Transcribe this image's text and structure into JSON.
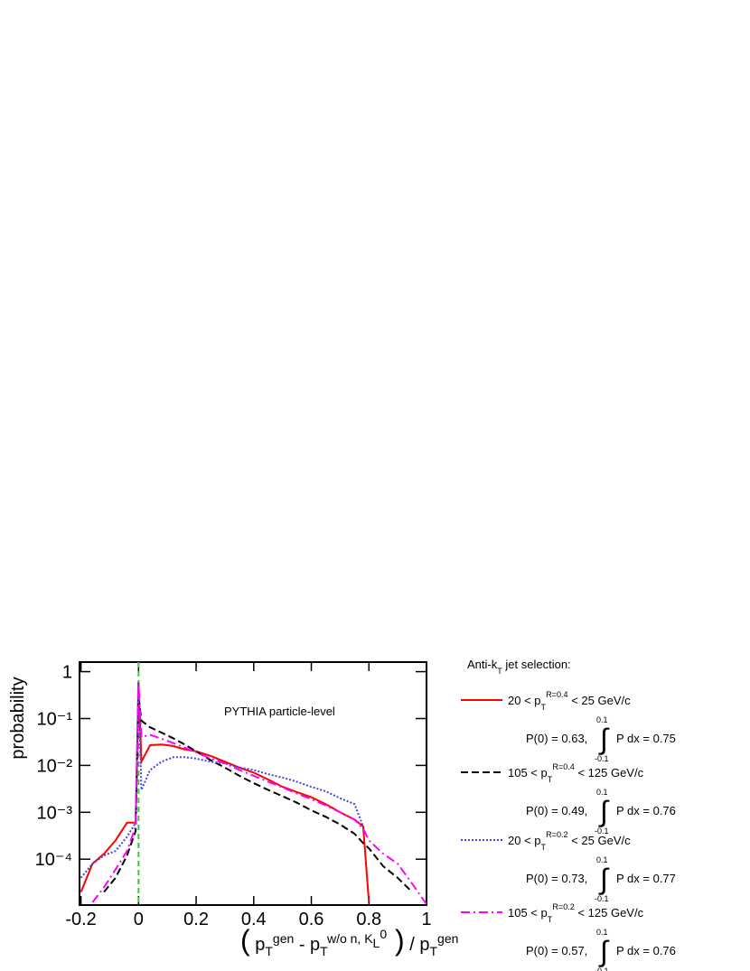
{
  "chart_data": {
    "type": "line",
    "y_label": "probability",
    "x_label": [
      {
        "text": "(",
        "role": "paren"
      },
      {
        "text": " p",
        "role": "base"
      },
      {
        "text": "T",
        "role": "sub"
      },
      {
        "text": "gen",
        "role": "sup"
      },
      {
        "text": " - p",
        "role": "base"
      },
      {
        "text": "T",
        "role": "sub"
      },
      {
        "text": "w/o n, K",
        "role": "sup"
      },
      {
        "text": "L",
        "role": "supsub"
      },
      {
        "text": "0",
        "role": "supsup"
      },
      {
        "text": " )",
        "role": "paren"
      },
      {
        "text": " / p",
        "role": "base"
      },
      {
        "text": "T",
        "role": "sub"
      },
      {
        "text": "gen",
        "role": "sup"
      }
    ],
    "annotation": "PYTHIA particle-level",
    "xlim": [
      -0.205,
      1.0
    ],
    "xticks": [
      -0.2,
      0,
      0.2,
      0.4,
      0.6,
      0.8,
      1
    ],
    "ylim": [
      1.05e-05,
      1.6
    ],
    "log_y": true,
    "yticks": [
      {
        "value": 1,
        "label": "1"
      },
      {
        "value": 0.1,
        "label": "10⁻¹"
      },
      {
        "value": 0.01,
        "label": "10⁻²"
      },
      {
        "value": 0.001,
        "label": "10⁻³"
      },
      {
        "value": 0.0001,
        "label": "10⁻⁴"
      }
    ],
    "vline": {
      "x": 0,
      "color": "#33cc33"
    },
    "legend": {
      "title": [
        {
          "text": "Anti-k",
          "role": "base"
        },
        {
          "text": "T",
          "role": "sub"
        },
        {
          "text": " jet selection:",
          "role": "base"
        }
      ],
      "integral_sign": "∫",
      "integral_limits": [
        "-0.1",
        "0.1"
      ]
    },
    "x": [
      -0.2,
      -0.16,
      -0.12,
      -0.08,
      -0.04,
      -0.01,
      0,
      0.01,
      0.04,
      0.08,
      0.12,
      0.16,
      0.2,
      0.25,
      0.3,
      0.35,
      0.4,
      0.45,
      0.5,
      0.55,
      0.6,
      0.65,
      0.7,
      0.75,
      0.78,
      0.8,
      0.85,
      0.9,
      0.95,
      1.0
    ],
    "series": [
      {
        "name": [
          {
            "text": "20 < p",
            "role": "base"
          },
          {
            "text": "T",
            "role": "sub"
          },
          {
            "text": "R=0.4",
            "role": "sup"
          },
          {
            "text": " <  25 GeV/c",
            "role": "base"
          }
        ],
        "color": "#ff0000",
        "dash": "solid",
        "p0_label": "P(0) = 0.63,",
        "integral_label": "P dx = 0.75",
        "values": [
          2e-05,
          8e-05,
          0.00013,
          0.00025,
          0.0006,
          0.0006,
          0.6,
          0.012,
          0.027,
          0.028,
          0.026,
          0.022,
          0.02,
          0.016,
          0.012,
          0.009,
          0.007,
          0.005,
          0.0035,
          0.0027,
          0.0021,
          0.0015,
          0.001,
          0.0007,
          0.0005,
          1.2e-05,
          null,
          null,
          null,
          null
        ]
      },
      {
        "name": [
          {
            "text": "105 < p",
            "role": "base"
          },
          {
            "text": "T",
            "role": "sub"
          },
          {
            "text": "R=0.4",
            "role": "sup"
          },
          {
            "text": " < 125 GeV/c",
            "role": "base"
          }
        ],
        "color": "#000000",
        "dash": "dashed",
        "p0_label": "P(0) = 0.49,",
        "integral_label": "P dx = 0.76",
        "values": [
          null,
          null,
          2e-05,
          4e-05,
          0.00012,
          0.0004,
          0.3,
          0.09,
          0.065,
          0.05,
          0.038,
          0.028,
          0.02,
          0.013,
          0.009,
          0.006,
          0.0042,
          0.003,
          0.0022,
          0.0016,
          0.0011,
          0.0008,
          0.00055,
          0.00035,
          0.00022,
          0.00017,
          7e-05,
          4e-05,
          2e-05,
          null
        ]
      },
      {
        "name": [
          {
            "text": "20 < p",
            "role": "base"
          },
          {
            "text": "T",
            "role": "sub"
          },
          {
            "text": "R=0.2",
            "role": "sup"
          },
          {
            "text": " <  25 GeV/c",
            "role": "base"
          }
        ],
        "color": "#4444dd",
        "dash": "dotted",
        "p0_label": "P(0) = 0.73,",
        "integral_label": "P dx = 0.77",
        "values": [
          4e-05,
          8e-05,
          0.00012,
          0.00015,
          0.0003,
          0.0006,
          0.6,
          0.003,
          0.008,
          0.012,
          0.015,
          0.015,
          0.014,
          0.012,
          0.011,
          0.009,
          0.008,
          0.0065,
          0.0055,
          0.0045,
          0.0035,
          0.0028,
          0.002,
          0.0015,
          0.0005,
          null,
          null,
          null,
          null,
          null
        ]
      },
      {
        "name": [
          {
            "text": "105 < p",
            "role": "base"
          },
          {
            "text": "T",
            "role": "sub"
          },
          {
            "text": "R=0.2",
            "role": "sup"
          },
          {
            "text": " < 125 GeV/c",
            "role": "base"
          }
        ],
        "color": "#ff00ff",
        "dash": "dashdot",
        "p0_label": "P(0) = 0.57,",
        "integral_label": "P dx = 0.76",
        "values": [
          null,
          1.2e-05,
          2.5e-05,
          6e-05,
          0.00015,
          0.0005,
          0.5,
          0.04,
          0.045,
          0.037,
          0.03,
          0.024,
          0.019,
          0.014,
          0.011,
          0.008,
          0.006,
          0.0045,
          0.0034,
          0.0025,
          0.0019,
          0.0014,
          0.001,
          0.0007,
          0.00045,
          0.00025,
          0.00013,
          8e-05,
          3e-05,
          1.1e-05
        ]
      }
    ]
  }
}
